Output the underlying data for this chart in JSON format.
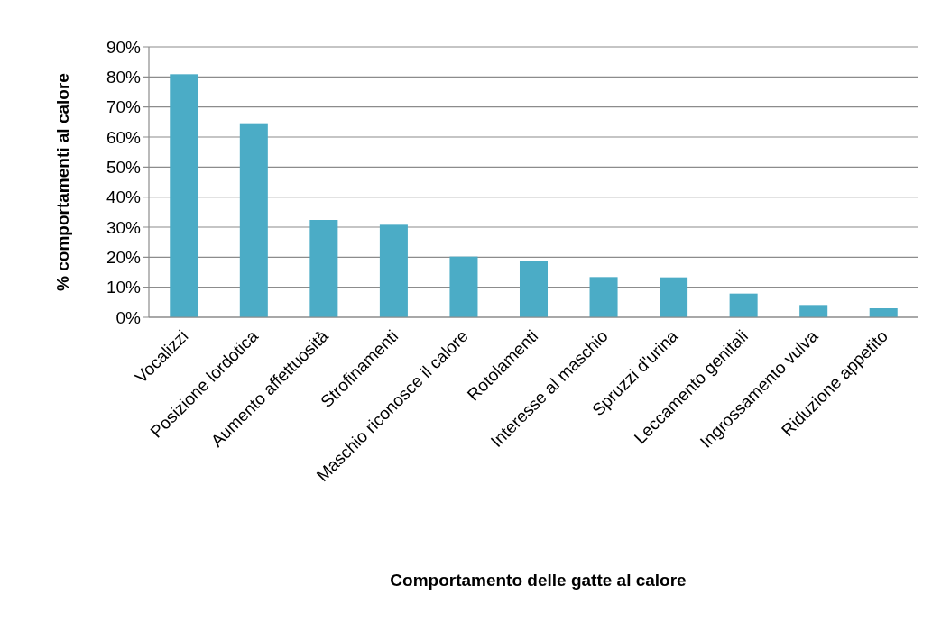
{
  "chart_data": {
    "type": "bar",
    "xlabel": "Comportamento delle gatte al calore",
    "ylabel": "% comportamenti al calore",
    "categories": [
      "Vocalizzi",
      "Posizione lordotica",
      "Aumento affettuosità",
      "Strofinamenti",
      "Maschio riconosce il calore",
      "Rotolamenti",
      "Interesse al maschio",
      "Spruzzi d'urina",
      "Leccamento genitali",
      "Ingrossamento vulva",
      "Riduzione appetito"
    ],
    "values": [
      80.9,
      64.3,
      32.4,
      30.8,
      20.2,
      18.7,
      13.4,
      13.3,
      7.9,
      4.1,
      3.0
    ],
    "color": "#4bacc6",
    "ylim": [
      0,
      90
    ],
    "yticks": [
      {
        "value": 0,
        "label": "0%"
      },
      {
        "value": 10,
        "label": "10%"
      },
      {
        "value": 20,
        "label": "20%"
      },
      {
        "value": 30,
        "label": "30%"
      },
      {
        "value": 40,
        "label": "40%"
      },
      {
        "value": 50,
        "label": "50%"
      },
      {
        "value": 60,
        "label": "60%"
      },
      {
        "value": 70,
        "label": "70%"
      },
      {
        "value": 80,
        "label": "80%"
      },
      {
        "value": 90,
        "label": "90%"
      }
    ],
    "grid": "y"
  }
}
